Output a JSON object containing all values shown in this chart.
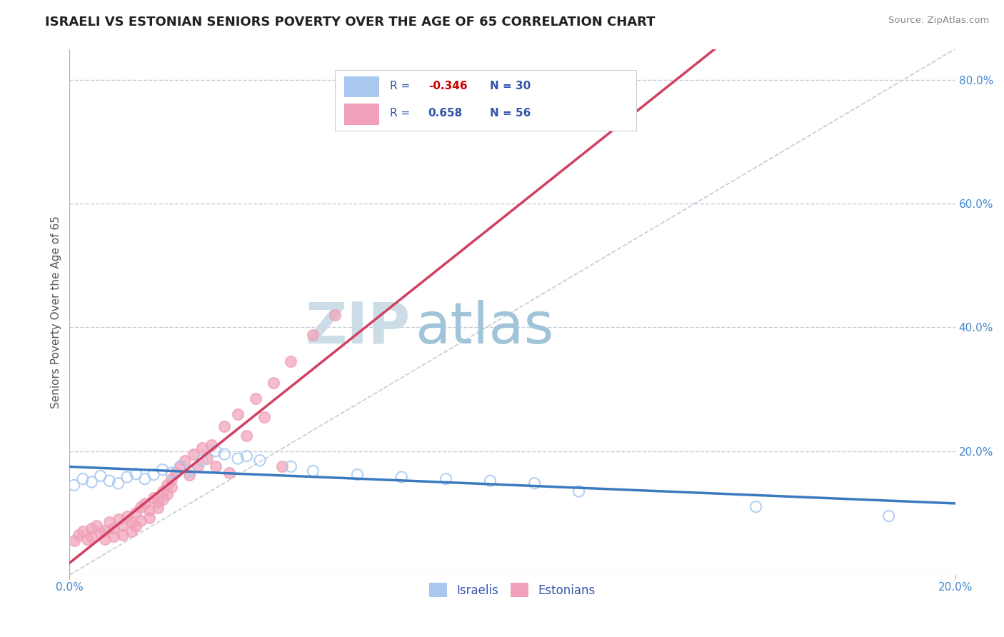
{
  "title": "ISRAELI VS ESTONIAN SENIORS POVERTY OVER THE AGE OF 65 CORRELATION CHART",
  "source": "Source: ZipAtlas.com",
  "ylabel": "Seniors Poverty Over the Age of 65",
  "xlim": [
    0.0,
    0.2
  ],
  "ylim": [
    0.0,
    0.85
  ],
  "israeli_color": "#a8c8f0",
  "estonian_color": "#f0a0b8",
  "israeli_line_color": "#3a7abf",
  "estonian_line_color": "#d04060",
  "diagonal_line_color": "#c8c8d8",
  "watermark_zip_color": "#ccdde8",
  "watermark_atlas_color": "#a0c4d8",
  "legend_R_israeli": "-0.346",
  "legend_N_israeli": "30",
  "legend_R_estonian": "0.658",
  "legend_N_estonian": "56",
  "israeli_points": [
    [
      0.001,
      0.145
    ],
    [
      0.003,
      0.155
    ],
    [
      0.005,
      0.15
    ],
    [
      0.007,
      0.16
    ],
    [
      0.009,
      0.152
    ],
    [
      0.011,
      0.148
    ],
    [
      0.013,
      0.158
    ],
    [
      0.015,
      0.163
    ],
    [
      0.017,
      0.155
    ],
    [
      0.019,
      0.162
    ],
    [
      0.021,
      0.17
    ],
    [
      0.023,
      0.165
    ],
    [
      0.025,
      0.175
    ],
    [
      0.027,
      0.168
    ],
    [
      0.03,
      0.185
    ],
    [
      0.033,
      0.2
    ],
    [
      0.035,
      0.195
    ],
    [
      0.038,
      0.188
    ],
    [
      0.04,
      0.192
    ],
    [
      0.043,
      0.185
    ],
    [
      0.05,
      0.175
    ],
    [
      0.055,
      0.168
    ],
    [
      0.065,
      0.162
    ],
    [
      0.075,
      0.158
    ],
    [
      0.085,
      0.155
    ],
    [
      0.095,
      0.152
    ],
    [
      0.105,
      0.148
    ],
    [
      0.115,
      0.135
    ],
    [
      0.155,
      0.11
    ],
    [
      0.185,
      0.095
    ]
  ],
  "estonian_points": [
    [
      0.001,
      0.055
    ],
    [
      0.002,
      0.065
    ],
    [
      0.003,
      0.07
    ],
    [
      0.004,
      0.058
    ],
    [
      0.005,
      0.075
    ],
    [
      0.005,
      0.062
    ],
    [
      0.006,
      0.08
    ],
    [
      0.007,
      0.068
    ],
    [
      0.008,
      0.072
    ],
    [
      0.008,
      0.058
    ],
    [
      0.009,
      0.085
    ],
    [
      0.01,
      0.075
    ],
    [
      0.01,
      0.062
    ],
    [
      0.011,
      0.09
    ],
    [
      0.012,
      0.08
    ],
    [
      0.012,
      0.065
    ],
    [
      0.013,
      0.095
    ],
    [
      0.014,
      0.085
    ],
    [
      0.014,
      0.07
    ],
    [
      0.015,
      0.1
    ],
    [
      0.015,
      0.078
    ],
    [
      0.016,
      0.11
    ],
    [
      0.016,
      0.088
    ],
    [
      0.017,
      0.115
    ],
    [
      0.018,
      0.105
    ],
    [
      0.018,
      0.092
    ],
    [
      0.019,
      0.125
    ],
    [
      0.02,
      0.118
    ],
    [
      0.02,
      0.108
    ],
    [
      0.021,
      0.135
    ],
    [
      0.021,
      0.122
    ],
    [
      0.022,
      0.145
    ],
    [
      0.022,
      0.13
    ],
    [
      0.023,
      0.155
    ],
    [
      0.023,
      0.142
    ],
    [
      0.024,
      0.165
    ],
    [
      0.025,
      0.175
    ],
    [
      0.026,
      0.185
    ],
    [
      0.027,
      0.162
    ],
    [
      0.028,
      0.195
    ],
    [
      0.029,
      0.175
    ],
    [
      0.03,
      0.205
    ],
    [
      0.031,
      0.188
    ],
    [
      0.032,
      0.21
    ],
    [
      0.033,
      0.175
    ],
    [
      0.035,
      0.24
    ],
    [
      0.036,
      0.165
    ],
    [
      0.038,
      0.26
    ],
    [
      0.04,
      0.225
    ],
    [
      0.042,
      0.285
    ],
    [
      0.044,
      0.255
    ],
    [
      0.046,
      0.31
    ],
    [
      0.048,
      0.175
    ],
    [
      0.05,
      0.345
    ],
    [
      0.055,
      0.388
    ],
    [
      0.06,
      0.42
    ]
  ],
  "background_color": "#ffffff",
  "grid_color": "#c8ccd8",
  "title_color": "#222222",
  "axis_label_color": "#555555",
  "tick_label_color": "#4488cc",
  "legend_text_color": "#3355aa",
  "legend_R_neg_color": "#cc0000"
}
